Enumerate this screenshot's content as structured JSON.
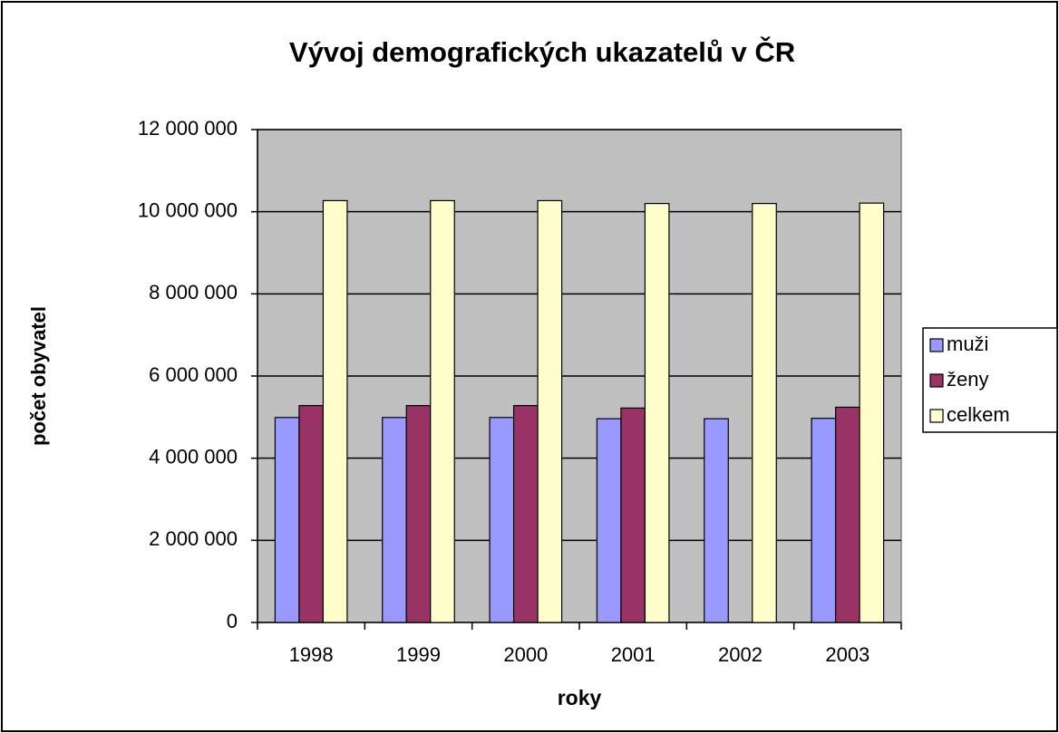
{
  "chart_data": {
    "type": "bar",
    "title": "Vývoj demografických ukazatelů v ČR",
    "x_label": "roky",
    "y_label": "počet obyvatel",
    "categories": [
      "1998",
      "1999",
      "2000",
      "2001",
      "2002",
      "2003"
    ],
    "series": [
      {
        "name": "muži",
        "color": "#9999ff",
        "values": [
          4990000,
          4990000,
          4990000,
          4960000,
          4960000,
          4970000
        ]
      },
      {
        "name": "ženy",
        "color": "#993366",
        "values": [
          5280000,
          5280000,
          5280000,
          5220000,
          null,
          5240000
        ]
      },
      {
        "name": "celkem",
        "color": "#ffffcc",
        "values": [
          10270000,
          10270000,
          10270000,
          10200000,
          10200000,
          10210000
        ]
      }
    ],
    "ylim": [
      0,
      12000000
    ],
    "yticks": [
      0,
      {
        "value": 2000000,
        "label": "2 000 000"
      },
      {
        "value": 4000000,
        "label": "4 000 000"
      },
      {
        "value": 6000000,
        "label": "6 000 000"
      },
      {
        "value": 8000000,
        "label": "8 000 000"
      },
      {
        "value": 10000000,
        "label": "10 000 000"
      },
      {
        "value": 12000000,
        "label": "12 000 000"
      }
    ],
    "grid": true,
    "legend": "right",
    "plot_background": "#c0c0c0"
  }
}
